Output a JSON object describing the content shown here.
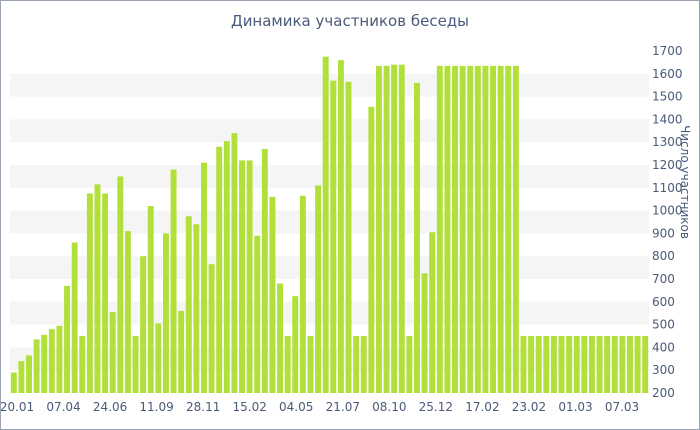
{
  "chart_data": {
    "type": "bar",
    "title": "Динамика участников беседы",
    "xlabel": "",
    "ylabel": "Число участников",
    "ylim": [
      200,
      1700
    ],
    "yticks": [
      200,
      300,
      400,
      500,
      600,
      700,
      800,
      900,
      1000,
      1100,
      1200,
      1300,
      1400,
      1500,
      1600,
      1700
    ],
    "y_axis_side": "right",
    "grid": "horizontal-bands",
    "bar_color": "#b2e03a",
    "band_color": "#f5f5f5",
    "xtick_labels": [
      "20.01",
      "07.04",
      "24.06",
      "11.09",
      "28.11",
      "15.02",
      "04.05",
      "21.07",
      "08.10",
      "25.12",
      "17.02",
      "23.02",
      "01.03",
      "07.03"
    ],
    "values": [
      290,
      340,
      365,
      435,
      455,
      480,
      495,
      670,
      860,
      450,
      1075,
      1115,
      1075,
      555,
      1150,
      910,
      450,
      800,
      1020,
      505,
      900,
      1180,
      560,
      975,
      940,
      1210,
      765,
      1280,
      1305,
      1340,
      1220,
      1220,
      890,
      1270,
      1060,
      680,
      450,
      625,
      1065,
      450,
      1110,
      1675,
      1570,
      1660,
      1565,
      450,
      450,
      1455,
      1635,
      1635,
      1640,
      1640,
      450,
      1560,
      725,
      905,
      1635,
      1635,
      1635,
      1635,
      1635,
      1635,
      1635,
      1635,
      1635,
      1635,
      1635,
      450,
      450,
      450,
      450,
      450,
      450,
      450,
      450,
      450,
      450,
      450,
      450,
      450,
      450,
      450,
      450,
      450
    ]
  }
}
